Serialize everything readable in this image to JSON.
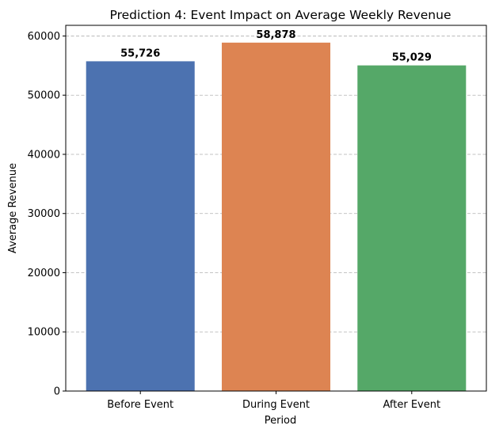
{
  "chart_data": {
    "type": "bar",
    "title": "Prediction 4: Event Impact on Average Weekly Revenue",
    "xlabel": "Period",
    "ylabel": "Average Revenue",
    "categories": [
      "Before Event",
      "During Event",
      "After Event"
    ],
    "values": [
      55726,
      58878,
      55029
    ],
    "value_labels": [
      "55,726",
      "58,878",
      "55,029"
    ],
    "colors": [
      "#4c72b0",
      "#dd8452",
      "#55a868"
    ],
    "ylim": [
      0,
      61800
    ],
    "yticks": [
      0,
      10000,
      20000,
      30000,
      40000,
      50000,
      60000
    ],
    "ytick_labels": [
      "0",
      "10000",
      "20000",
      "30000",
      "40000",
      "50000",
      "60000"
    ],
    "grid": "y-dashed",
    "legend": "none"
  }
}
